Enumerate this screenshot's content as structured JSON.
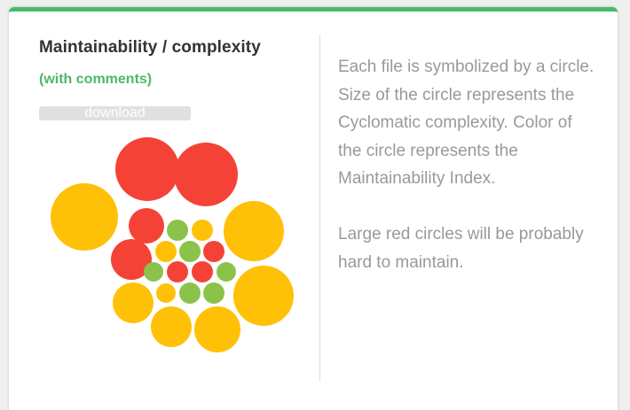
{
  "card": {
    "title": "Maintainability / complexity",
    "subtitle": "(with comments)",
    "download_label": "download",
    "description": [
      "Each file is symbolized by a circle. Size of the circle represents the Cyclomatic complexity. Color of the circle represents the Maintainability Index.",
      "Large red circles will be probably hard to maintain."
    ]
  },
  "colors": {
    "accent": "#4cb86b",
    "red": "#f44336",
    "yellow": "#ffc107",
    "green": "#8bc34a"
  },
  "circles": [
    {
      "color": "red"
    },
    {
      "color": "red"
    },
    {
      "color": "yellow"
    },
    {
      "color": "red"
    },
    {
      "color": "green"
    },
    {
      "color": "yellow"
    },
    {
      "color": "yellow"
    },
    {
      "color": "red"
    },
    {
      "color": "yellow"
    },
    {
      "color": "green"
    },
    {
      "color": "red"
    },
    {
      "color": "green"
    },
    {
      "color": "red"
    },
    {
      "color": "red"
    },
    {
      "color": "green"
    },
    {
      "color": "yellow"
    },
    {
      "color": "yellow"
    },
    {
      "color": "yellow"
    },
    {
      "color": "green"
    },
    {
      "color": "green"
    },
    {
      "color": "yellow"
    },
    {
      "color": "yellow"
    }
  ]
}
